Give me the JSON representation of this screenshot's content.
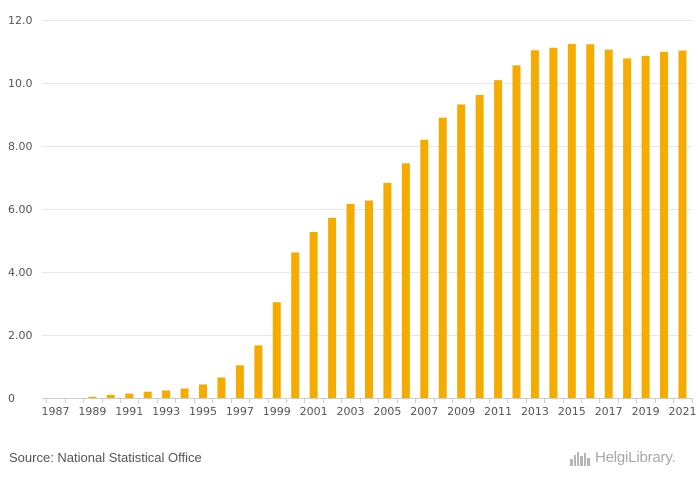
{
  "chart_data": {
    "type": "bar",
    "title": "",
    "xlabel": "",
    "ylabel": "",
    "ylim": [
      0,
      12
    ],
    "yticks": [
      "0",
      "2.00",
      "4.00",
      "6.00",
      "8.00",
      "10.0",
      "12.0"
    ],
    "ytick_values": [
      0,
      2,
      4,
      6,
      8,
      10,
      12
    ],
    "grid": true,
    "bar_color": "#f5ab00",
    "categories": [
      "1987",
      "1988",
      "1989",
      "1990",
      "1991",
      "1992",
      "1993",
      "1994",
      "1995",
      "1996",
      "1997",
      "1998",
      "1999",
      "2000",
      "2001",
      "2002",
      "2003",
      "2004",
      "2005",
      "2006",
      "2007",
      "2008",
      "2009",
      "2010",
      "2011",
      "2012",
      "2013",
      "2014",
      "2015",
      "2016",
      "2017",
      "2018",
      "2019",
      "2020",
      "2021"
    ],
    "xtick_labels": [
      "1987",
      "1989",
      "1991",
      "1993",
      "1995",
      "1997",
      "1999",
      "2001",
      "2003",
      "2005",
      "2007",
      "2009",
      "2011",
      "2013",
      "2015",
      "2017",
      "2019",
      "2021"
    ],
    "values": [
      0,
      0,
      0.04,
      0.1,
      0.14,
      0.2,
      0.24,
      0.3,
      0.43,
      0.65,
      1.04,
      1.67,
      3.04,
      4.62,
      5.27,
      5.72,
      6.16,
      6.27,
      6.83,
      7.45,
      8.2,
      8.9,
      9.32,
      9.62,
      10.09,
      10.56,
      11.04,
      11.12,
      11.24,
      11.23,
      11.06,
      10.78,
      10.86,
      10.99,
      11.03
    ]
  },
  "footer": {
    "source": "Source: National Statistical Office",
    "logo_text": "HelgiLibrary.",
    "logo_icon": "skyline-icon"
  }
}
